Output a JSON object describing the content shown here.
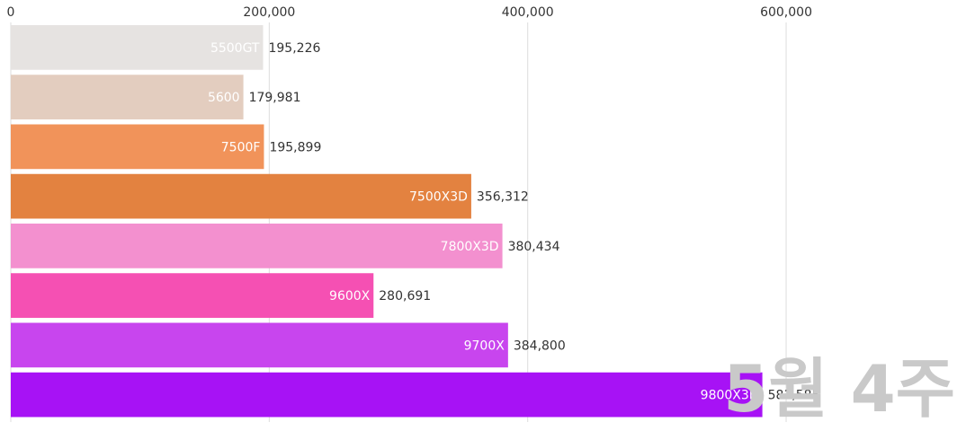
{
  "chart_data": {
    "type": "bar",
    "orientation": "horizontal",
    "categories": [
      "5500GT",
      "5600",
      "7500F",
      "7500X3D",
      "7800X3D",
      "9600X",
      "9700X",
      "9800X3D"
    ],
    "values": [
      195226,
      179981,
      195899,
      356312,
      380434,
      280691,
      384800,
      581585
    ],
    "value_labels": [
      "195,226",
      "179,981",
      "195,899",
      "356,312",
      "380,434",
      "280,691",
      "384,800",
      "581,585"
    ],
    "colors": [
      "#e6e3e1",
      "#e3cdbf",
      "#f1935a",
      "#e38240",
      "#f390cf",
      "#f550b3",
      "#c845ee",
      "#a712f5"
    ],
    "x_ticks": [
      "0",
      "200,000",
      "400,000",
      "600,000"
    ],
    "x_tick_values": [
      0,
      200000,
      400000,
      600000
    ],
    "xlim": [
      0,
      735000
    ],
    "grid": true,
    "legend": "none",
    "watermark": "5월 4주"
  }
}
